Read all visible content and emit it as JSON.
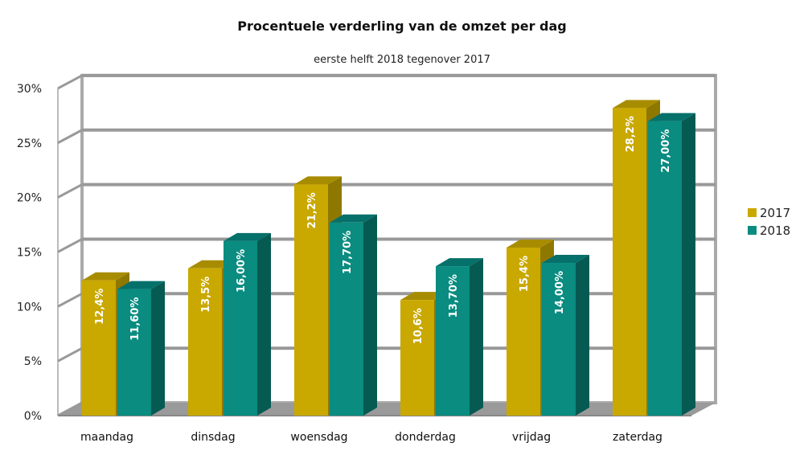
{
  "chart_data": {
    "type": "bar",
    "title": "Procentuele verderling van de omzet per dag",
    "subtitle": "eerste helft 2018 tegenover 2017",
    "xlabel": "",
    "ylabel": "",
    "ylim": [
      0,
      30
    ],
    "yticks": [
      "0%",
      "5%",
      "10%",
      "15%",
      "20%",
      "25%",
      "30%"
    ],
    "ytick_values": [
      0,
      5,
      10,
      15,
      20,
      25,
      30
    ],
    "categories": [
      "maandag",
      "dinsdag",
      "woensdag",
      "donderdag",
      "vrijdag",
      "zaterdag"
    ],
    "series": [
      {
        "name": "2017",
        "values": [
          12.4,
          13.5,
          21.2,
          10.6,
          15.4,
          28.2
        ],
        "labels": [
          "12,4%",
          "13,5%",
          "21,2%",
          "10,6%",
          "15,4%",
          "28,2%"
        ],
        "color": "#c9a800",
        "side_color": "#8f7800",
        "top_color": "#a88c00"
      },
      {
        "name": "2018",
        "values": [
          11.6,
          16.0,
          17.7,
          13.7,
          14.0,
          27.0
        ],
        "labels": [
          "11,60%",
          "16,00%",
          "17,70%",
          "13,70%",
          "14,00%",
          "27,00%"
        ],
        "color": "#0a8c80",
        "side_color": "#055a52",
        "top_color": "#06706a"
      }
    ],
    "grid": true,
    "style": "3d",
    "legend_position": "right"
  }
}
